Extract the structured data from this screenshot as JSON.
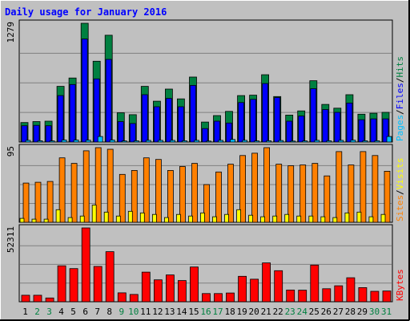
{
  "title": "Daily usage for January 2016",
  "colors": {
    "background": "#c0c0c0",
    "grid": "#808080",
    "hits": "#008040",
    "files": "#0000ff",
    "pages": "#00c0ff",
    "visits": "#ff8000",
    "sites": "#ffff00",
    "kbytes": "#ff0000",
    "title": "#0000ff"
  },
  "chart_data": [
    {
      "type": "bar",
      "panel": "top",
      "max_label": "1279",
      "ylim": [
        0,
        1279
      ],
      "legend_labels": {
        "pages": "Pages",
        "files": "Files",
        "hits": "Hits",
        "sep": "/"
      },
      "categories": [
        "1",
        "2",
        "3",
        "4",
        "5",
        "6",
        "7",
        "8",
        "9",
        "10",
        "11",
        "12",
        "13",
        "14",
        "15",
        "16",
        "17",
        "18",
        "19",
        "20",
        "21",
        "22",
        "23",
        "24",
        "25",
        "26",
        "27",
        "28",
        "29",
        "30",
        "31"
      ],
      "weekend_days": [
        "2",
        "3",
        "9",
        "10",
        "16",
        "17",
        "23",
        "24",
        "30",
        "31"
      ],
      "series": [
        {
          "name": "Hits",
          "values": [
            210,
            220,
            225,
            600,
            690,
            1279,
            870,
            1150,
            315,
            295,
            600,
            440,
            570,
            465,
            700,
            215,
            285,
            330,
            500,
            505,
            725,
            490,
            290,
            335,
            660,
            405,
            365,
            510,
            300,
            310,
            320
          ]
        },
        {
          "name": "Files",
          "values": [
            175,
            180,
            175,
            500,
            620,
            1110,
            680,
            890,
            220,
            200,
            510,
            380,
            470,
            380,
            610,
            145,
            225,
            205,
            425,
            460,
            630,
            480,
            225,
            280,
            575,
            350,
            320,
            420,
            240,
            250,
            250
          ]
        },
        {
          "name": "Pages",
          "values": [
            18,
            14,
            12,
            22,
            22,
            20,
            60,
            22,
            12,
            14,
            18,
            18,
            18,
            14,
            18,
            10,
            18,
            28,
            18,
            12,
            14,
            16,
            10,
            12,
            18,
            14,
            18,
            20,
            14,
            14,
            60
          ]
        }
      ]
    },
    {
      "type": "bar",
      "panel": "middle",
      "max_label": "95",
      "ylim": [
        0,
        95
      ],
      "legend_labels": {
        "sites": "Sites",
        "visits": "Visits",
        "sep": "/"
      },
      "categories": [
        "1",
        "2",
        "3",
        "4",
        "5",
        "6",
        "7",
        "8",
        "9",
        "10",
        "11",
        "12",
        "13",
        "14",
        "15",
        "16",
        "17",
        "18",
        "19",
        "20",
        "21",
        "22",
        "23",
        "24",
        "25",
        "26",
        "27",
        "28",
        "29",
        "30",
        "31"
      ],
      "series": [
        {
          "name": "Visits",
          "values": [
            50,
            51,
            52,
            82,
            75,
            91,
            95,
            93,
            61,
            66,
            82,
            80,
            66,
            71,
            75,
            48,
            64,
            74,
            85,
            88,
            95,
            74,
            72,
            73,
            75,
            59,
            90,
            73,
            90,
            85,
            65
          ]
        },
        {
          "name": "Sites",
          "values": [
            5,
            4,
            4,
            16,
            6,
            8,
            22,
            13,
            8,
            14,
            12,
            10,
            6,
            10,
            8,
            12,
            7,
            10,
            16,
            9,
            7,
            8,
            10,
            8,
            8,
            7,
            6,
            12,
            13,
            7,
            10
          ]
        }
      ]
    },
    {
      "type": "bar",
      "panel": "bottom",
      "max_label": "52311",
      "ylim": [
        0,
        52311
      ],
      "legend_labels": {
        "kbytes": "KBytes"
      },
      "categories": [
        "1",
        "2",
        "3",
        "4",
        "5",
        "6",
        "7",
        "8",
        "9",
        "10",
        "11",
        "12",
        "13",
        "14",
        "15",
        "16",
        "17",
        "18",
        "19",
        "20",
        "21",
        "22",
        "23",
        "24",
        "25",
        "26",
        "27",
        "28",
        "29",
        "30",
        "31"
      ],
      "series": [
        {
          "name": "KBytes",
          "values": [
            4600,
            4600,
            2700,
            25500,
            23500,
            52311,
            25000,
            35500,
            6300,
            5200,
            21000,
            15500,
            19000,
            15000,
            24600,
            5800,
            5800,
            6200,
            18000,
            16000,
            27500,
            22000,
            8300,
            8200,
            26000,
            9200,
            11300,
            17000,
            10000,
            7400,
            7600
          ]
        }
      ]
    }
  ]
}
